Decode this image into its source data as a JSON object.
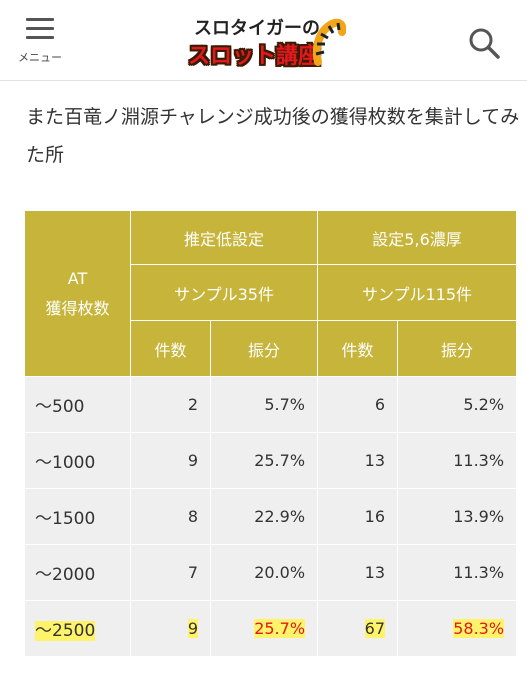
{
  "header": {
    "menu_label": "メニュー",
    "logo_top": "スロタイガーの",
    "logo_bottom": "スロット講座"
  },
  "intro_text": "また百竜ノ淵源チャレンジ成功後の獲得枚数を集計してみた所",
  "table": {
    "row_header": [
      "AT",
      "獲得枚数"
    ],
    "groups": [
      {
        "label": "推定低設定",
        "sample": "サンプル35件",
        "col_count": "件数",
        "col_ratio": "振分"
      },
      {
        "label": "設定5,6濃厚",
        "sample": "サンプル115件",
        "col_count": "件数",
        "col_ratio": "振分"
      }
    ],
    "rows": [
      {
        "range": "〜500",
        "low_count": "2",
        "low_ratio": "5.7%",
        "high_count": "6",
        "high_ratio": "5.2%",
        "highlight": false
      },
      {
        "range": "〜1000",
        "low_count": "9",
        "low_ratio": "25.7%",
        "high_count": "13",
        "high_ratio": "11.3%",
        "highlight": false
      },
      {
        "range": "〜1500",
        "low_count": "8",
        "low_ratio": "22.9%",
        "high_count": "16",
        "high_ratio": "13.9%",
        "highlight": false
      },
      {
        "range": "〜2000",
        "low_count": "7",
        "low_ratio": "20.0%",
        "high_count": "13",
        "high_ratio": "11.3%",
        "highlight": false
      },
      {
        "range": "〜2500",
        "low_count": "9",
        "low_ratio": "25.7%",
        "high_count": "67",
        "high_ratio": "58.3%",
        "highlight": true
      }
    ]
  },
  "colors": {
    "header_cell": "#c7b43a",
    "body_cell": "#efefef",
    "highlight": "#fff36a",
    "highlight_text": "#e0191f"
  }
}
